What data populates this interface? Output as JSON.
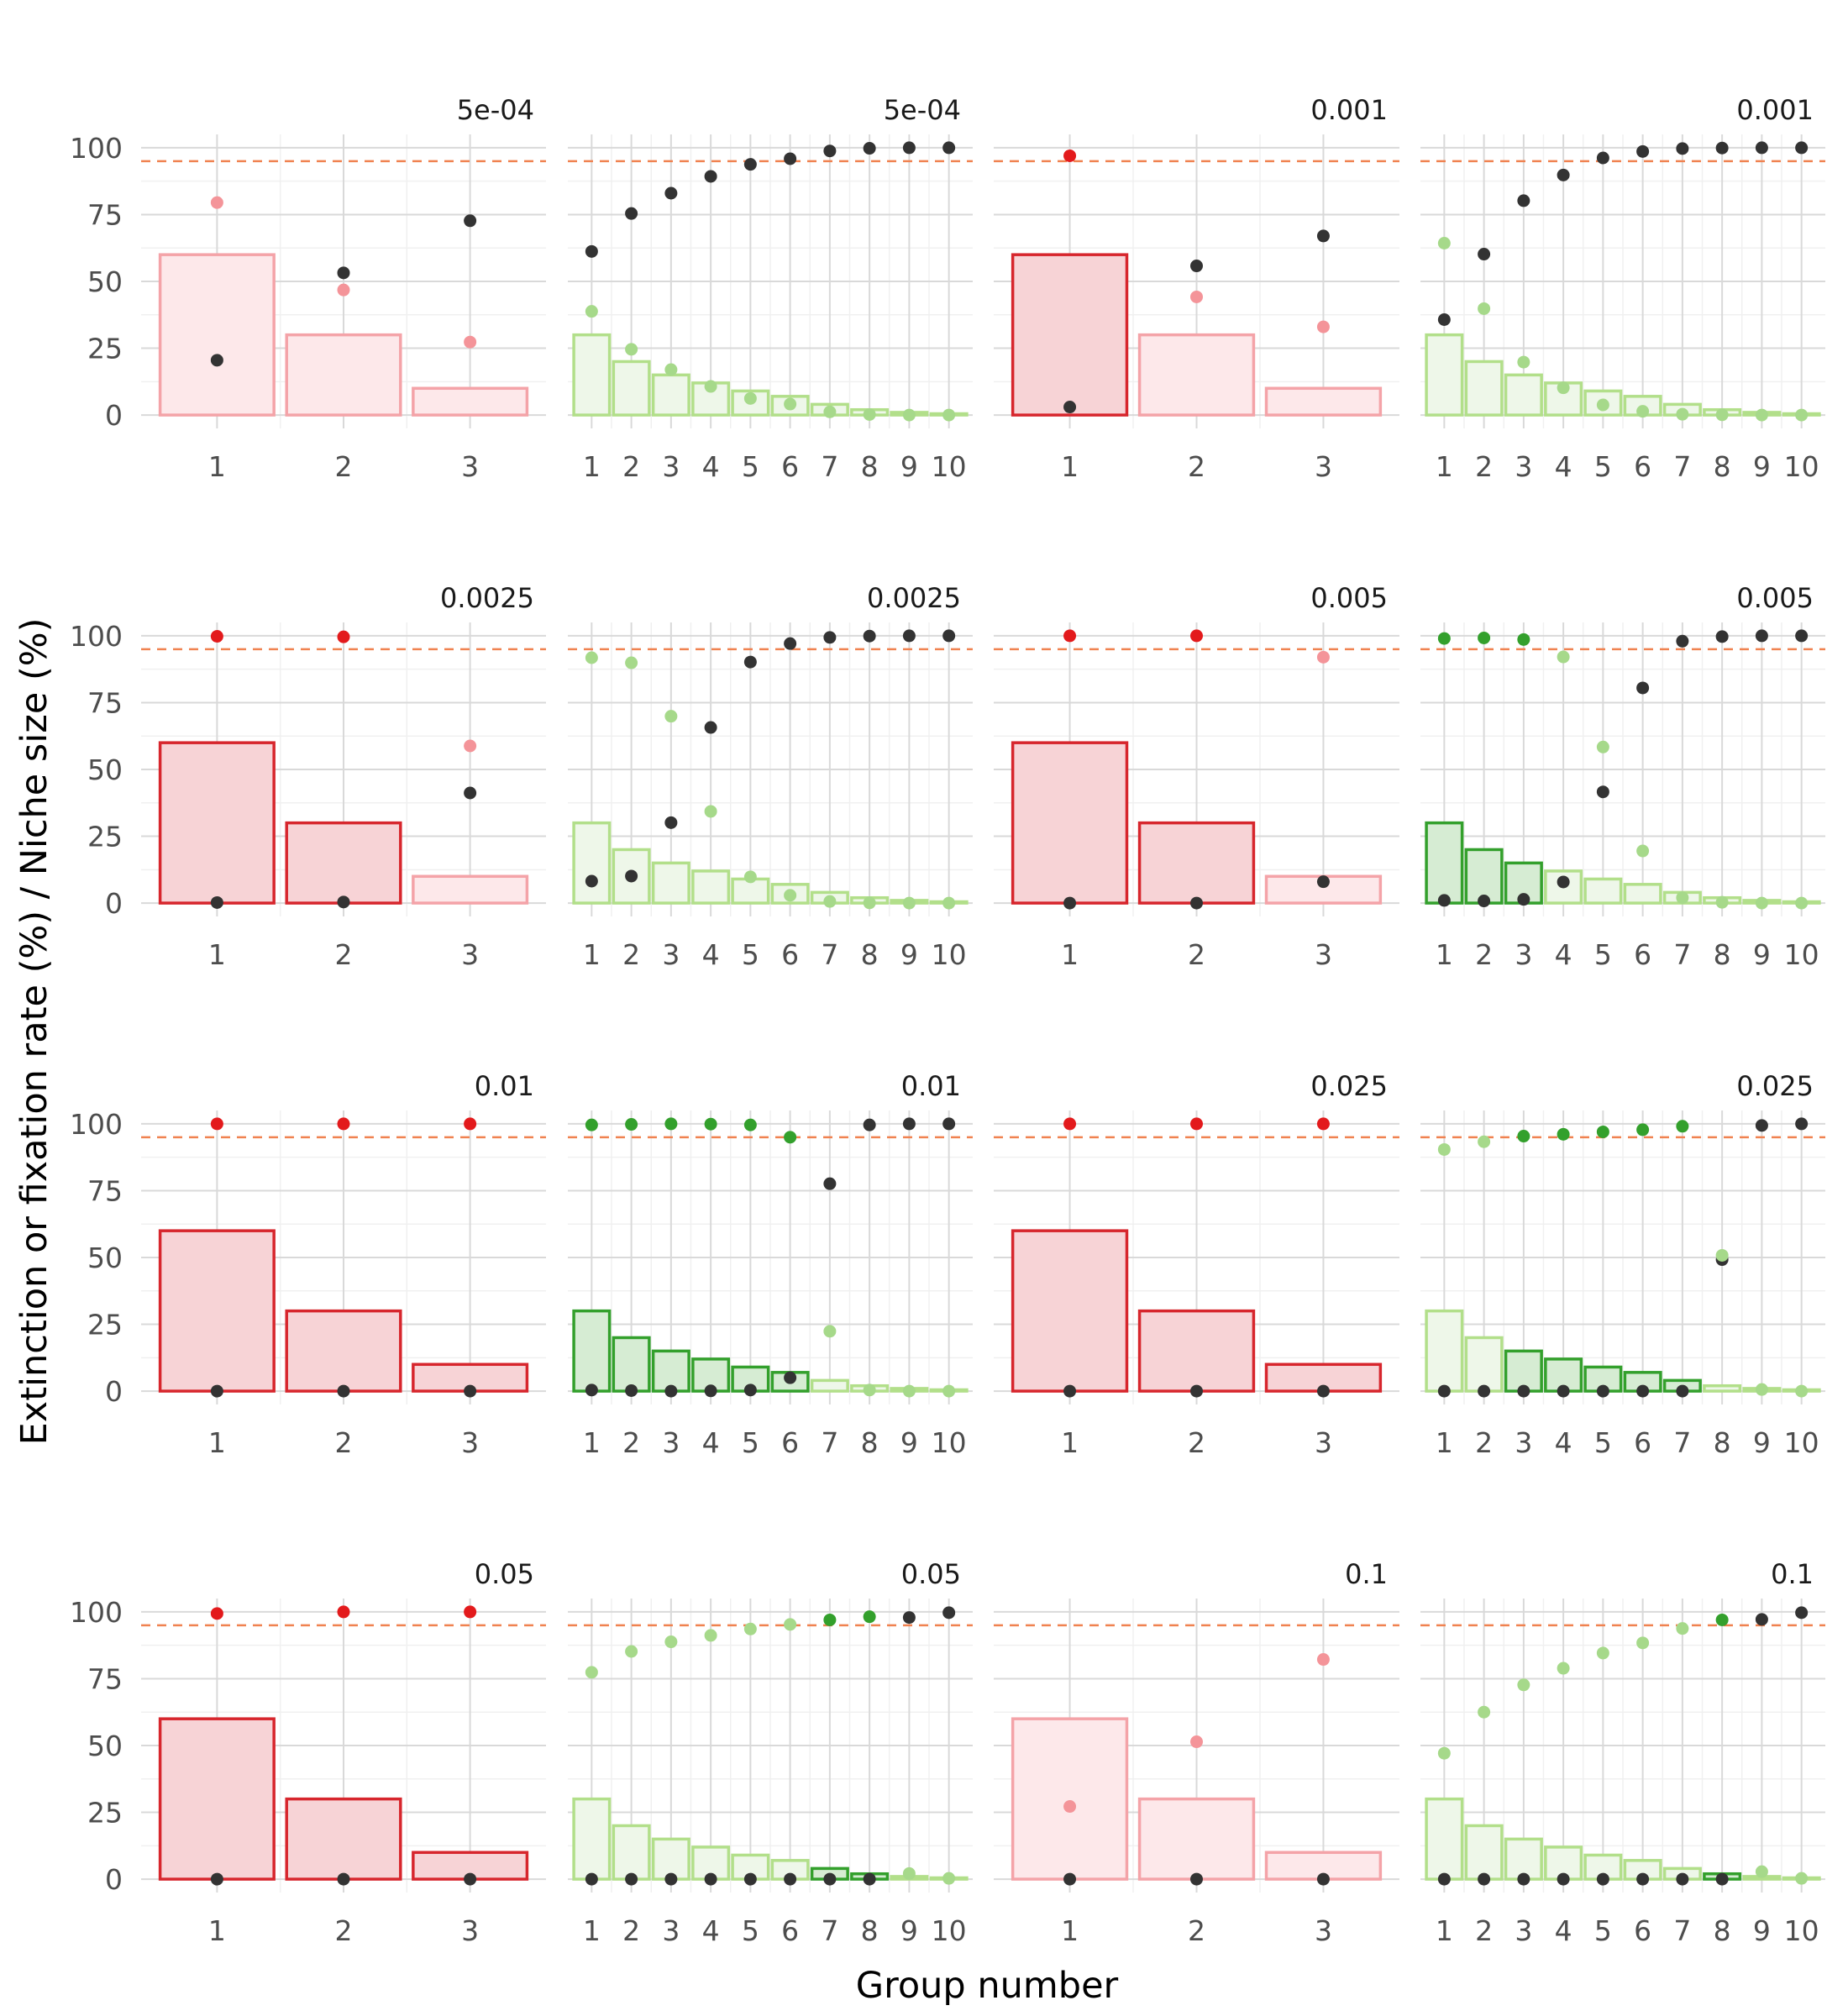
{
  "chart_data": {
    "type": "bar",
    "xlabel": "Group number",
    "ylabel": "Extinction or fixation rate (%) / Niche size (%)",
    "ylim": [
      0,
      100
    ],
    "yticks": [
      0,
      25,
      50,
      75,
      100
    ],
    "threshold": {
      "value": 95,
      "style": "dashed",
      "color": "#f08250"
    },
    "grid": true,
    "layout": {
      "rows": 4,
      "cols": 4
    },
    "palettes": {
      "red": {
        "dark_fill": "#f7d3d6",
        "dark_stroke": "#d7262d",
        "light_fill": "#fde8ea",
        "light_stroke": "#f4a3a8",
        "dot_dark": "#e31a1c",
        "dot_light": "#f49499"
      },
      "green": {
        "dark_fill": "#d6ecd3",
        "dark_stroke": "#33a02c",
        "light_fill": "#eef7e9",
        "light_stroke": "#b2df8a",
        "dot_dark": "#33a02c",
        "dot_light": "#a6d98a"
      },
      "extinction_dot": "#333333"
    },
    "panels": [
      {
        "title": "5e-04",
        "palette": "red",
        "categories": [
          1,
          2,
          3
        ],
        "niche": [
          60,
          30,
          10
        ],
        "dark": [
          false,
          false,
          false
        ],
        "fixation": [
          79.5,
          46.8,
          27.3
        ],
        "fix_dark": [
          false,
          false,
          false
        ],
        "extinction": [
          20.5,
          53.2,
          72.7
        ]
      },
      {
        "title": "5e-04",
        "palette": "green",
        "categories": [
          1,
          2,
          3,
          4,
          5,
          6,
          7,
          8,
          9,
          10
        ],
        "niche": [
          30,
          20,
          15,
          12,
          9,
          7,
          4,
          2,
          1,
          0.5
        ],
        "dark": [
          false,
          false,
          false,
          false,
          false,
          false,
          false,
          false,
          false,
          false
        ],
        "fixation": [
          38.8,
          24.6,
          17.0,
          10.7,
          6.2,
          4.1,
          1.2,
          0.2,
          0.0,
          0.0
        ],
        "fix_dark": [
          false,
          false,
          false,
          false,
          false,
          false,
          false,
          false,
          false,
          false
        ],
        "extinction": [
          61.2,
          75.4,
          83.0,
          89.3,
          93.8,
          95.9,
          98.8,
          99.8,
          100.0,
          100.0
        ]
      },
      {
        "title": "0.001",
        "palette": "red",
        "categories": [
          1,
          2,
          3
        ],
        "niche": [
          60,
          30,
          10
        ],
        "dark": [
          true,
          false,
          false
        ],
        "fixation": [
          97.0,
          44.2,
          33.0
        ],
        "fix_dark": [
          true,
          false,
          false
        ],
        "extinction": [
          3.0,
          55.8,
          67.0
        ]
      },
      {
        "title": "0.001",
        "palette": "green",
        "categories": [
          1,
          2,
          3,
          4,
          5,
          6,
          7,
          8,
          9,
          10
        ],
        "niche": [
          30,
          20,
          15,
          12,
          9,
          7,
          4,
          2,
          1,
          0.5
        ],
        "dark": [
          false,
          false,
          false,
          false,
          false,
          false,
          false,
          false,
          false,
          false
        ],
        "fixation": [
          64.3,
          39.8,
          19.8,
          10.2,
          3.8,
          1.4,
          0.3,
          0.1,
          0.0,
          0.0
        ],
        "fix_dark": [
          false,
          false,
          false,
          false,
          false,
          false,
          false,
          false,
          false,
          false
        ],
        "extinction": [
          35.7,
          60.2,
          80.2,
          89.8,
          96.2,
          98.6,
          99.7,
          99.9,
          100.0,
          100.0
        ]
      },
      {
        "title": "0.0025",
        "palette": "red",
        "categories": [
          1,
          2,
          3
        ],
        "niche": [
          60,
          30,
          10
        ],
        "dark": [
          true,
          true,
          false
        ],
        "fixation": [
          99.8,
          99.6,
          58.8
        ],
        "fix_dark": [
          true,
          true,
          false
        ],
        "extinction": [
          0.2,
          0.4,
          41.2
        ]
      },
      {
        "title": "0.0025",
        "palette": "green",
        "categories": [
          1,
          2,
          3,
          4,
          5,
          6,
          7,
          8,
          9,
          10
        ],
        "niche": [
          30,
          20,
          15,
          12,
          9,
          7,
          4,
          2,
          1,
          0.5
        ],
        "dark": [
          false,
          false,
          false,
          false,
          false,
          false,
          false,
          false,
          false,
          false
        ],
        "fixation": [
          91.8,
          89.9,
          69.9,
          34.3,
          9.8,
          2.9,
          0.6,
          0.1,
          0.0,
          0.0
        ],
        "fix_dark": [
          false,
          false,
          false,
          false,
          false,
          false,
          false,
          false,
          false,
          false
        ],
        "extinction": [
          8.2,
          10.1,
          30.1,
          65.7,
          90.2,
          97.1,
          99.4,
          99.9,
          100.0,
          100.0
        ]
      },
      {
        "title": "0.005",
        "palette": "red",
        "categories": [
          1,
          2,
          3
        ],
        "niche": [
          60,
          30,
          10
        ],
        "dark": [
          true,
          true,
          false
        ],
        "fixation": [
          100.0,
          100.0,
          92.0
        ],
        "fix_dark": [
          true,
          true,
          false
        ],
        "extinction": [
          0.0,
          0.0,
          8.0
        ]
      },
      {
        "title": "0.005",
        "palette": "green",
        "categories": [
          1,
          2,
          3,
          4,
          5,
          6,
          7,
          8,
          9,
          10
        ],
        "niche": [
          30,
          20,
          15,
          12,
          9,
          7,
          4,
          2,
          1,
          0.5
        ],
        "dark": [
          true,
          true,
          true,
          false,
          false,
          false,
          false,
          false,
          false,
          false
        ],
        "fixation": [
          99.0,
          99.2,
          98.6,
          92.1,
          58.4,
          19.5,
          2.0,
          0.3,
          0.0,
          0.0
        ],
        "fix_dark": [
          true,
          true,
          true,
          false,
          false,
          false,
          false,
          false,
          false,
          false
        ],
        "extinction": [
          1.0,
          0.8,
          1.4,
          7.9,
          41.6,
          80.5,
          98.0,
          99.7,
          100.0,
          100.0
        ]
      },
      {
        "title": "0.01",
        "palette": "red",
        "categories": [
          1,
          2,
          3
        ],
        "niche": [
          60,
          30,
          10
        ],
        "dark": [
          true,
          true,
          true
        ],
        "fixation": [
          100.0,
          100.0,
          100.0
        ],
        "fix_dark": [
          true,
          true,
          true
        ],
        "extinction": [
          0.0,
          0.0,
          0.0
        ]
      },
      {
        "title": "0.01",
        "palette": "green",
        "categories": [
          1,
          2,
          3,
          4,
          5,
          6,
          7,
          8,
          9,
          10
        ],
        "niche": [
          30,
          20,
          15,
          12,
          9,
          7,
          4,
          2,
          1,
          0.5
        ],
        "dark": [
          true,
          true,
          true,
          true,
          true,
          true,
          false,
          false,
          false,
          false
        ],
        "fixation": [
          99.6,
          99.8,
          100.0,
          99.9,
          99.6,
          95.0,
          22.4,
          0.4,
          0.0,
          0.0
        ],
        "fix_dark": [
          true,
          true,
          true,
          true,
          true,
          true,
          false,
          false,
          false,
          false
        ],
        "extinction": [
          0.4,
          0.2,
          0.0,
          0.1,
          0.4,
          5.0,
          77.6,
          99.6,
          100.0,
          100.0
        ]
      },
      {
        "title": "0.025",
        "palette": "red",
        "categories": [
          1,
          2,
          3
        ],
        "niche": [
          60,
          30,
          10
        ],
        "dark": [
          true,
          true,
          true
        ],
        "fixation": [
          100.0,
          100.0,
          100.0
        ],
        "fix_dark": [
          true,
          true,
          true
        ],
        "extinction": [
          0.0,
          0.0,
          0.0
        ]
      },
      {
        "title": "0.025",
        "palette": "green",
        "categories": [
          1,
          2,
          3,
          4,
          5,
          6,
          7,
          8,
          9,
          10
        ],
        "niche": [
          30,
          20,
          15,
          12,
          9,
          7,
          4,
          2,
          1,
          0.5
        ],
        "dark": [
          false,
          false,
          true,
          true,
          true,
          true,
          true,
          false,
          false,
          false
        ],
        "fixation": [
          90.4,
          93.3,
          95.4,
          96.1,
          97.0,
          97.8,
          99.1,
          50.8,
          0.6,
          0.0
        ],
        "fix_dark": [
          false,
          false,
          true,
          true,
          true,
          true,
          true,
          false,
          false,
          false
        ],
        "extinction": [
          0.0,
          0.0,
          0.0,
          0.0,
          0.0,
          0.0,
          0.0,
          49.2,
          99.4,
          100.0
        ]
      },
      {
        "title": "0.05",
        "palette": "red",
        "categories": [
          1,
          2,
          3
        ],
        "niche": [
          60,
          30,
          10
        ],
        "dark": [
          true,
          true,
          true
        ],
        "fixation": [
          99.4,
          100.0,
          100.0
        ],
        "fix_dark": [
          true,
          true,
          true
        ],
        "extinction": [
          0.0,
          0.0,
          0.0
        ]
      },
      {
        "title": "0.05",
        "palette": "green",
        "categories": [
          1,
          2,
          3,
          4,
          5,
          6,
          7,
          8,
          9,
          10
        ],
        "niche": [
          30,
          20,
          15,
          12,
          9,
          7,
          4,
          2,
          1,
          0.5
        ],
        "dark": [
          false,
          false,
          false,
          false,
          false,
          false,
          true,
          true,
          false,
          false
        ],
        "fixation": [
          77.4,
          85.2,
          88.8,
          91.2,
          93.6,
          95.3,
          97.0,
          98.2,
          2.1,
          0.3
        ],
        "fix_dark": [
          false,
          false,
          false,
          false,
          false,
          false,
          true,
          true,
          false,
          false
        ],
        "extinction": [
          0.0,
          0.0,
          0.0,
          0.0,
          0.0,
          0.0,
          0.0,
          0.0,
          97.9,
          99.7
        ]
      },
      {
        "title": "0.1",
        "palette": "red",
        "categories": [
          1,
          2,
          3
        ],
        "niche": [
          60,
          30,
          10
        ],
        "dark": [
          false,
          false,
          false
        ],
        "fixation": [
          27.2,
          51.4,
          82.2
        ],
        "fix_dark": [
          false,
          false,
          false
        ],
        "extinction": [
          0.0,
          0.0,
          0.0
        ]
      },
      {
        "title": "0.1",
        "palette": "green",
        "categories": [
          1,
          2,
          3,
          4,
          5,
          6,
          7,
          8,
          9,
          10
        ],
        "niche": [
          30,
          20,
          15,
          12,
          9,
          7,
          4,
          2,
          1,
          0.5
        ],
        "dark": [
          false,
          false,
          false,
          false,
          false,
          false,
          false,
          true,
          false,
          false
        ],
        "fixation": [
          47.1,
          62.5,
          72.7,
          78.9,
          84.6,
          88.4,
          93.8,
          97.0,
          2.8,
          0.3
        ],
        "fix_dark": [
          false,
          false,
          false,
          false,
          false,
          false,
          false,
          true,
          false,
          false
        ],
        "extinction": [
          0.0,
          0.0,
          0.0,
          0.0,
          0.0,
          0.0,
          0.0,
          0.0,
          97.2,
          99.7
        ]
      }
    ]
  }
}
